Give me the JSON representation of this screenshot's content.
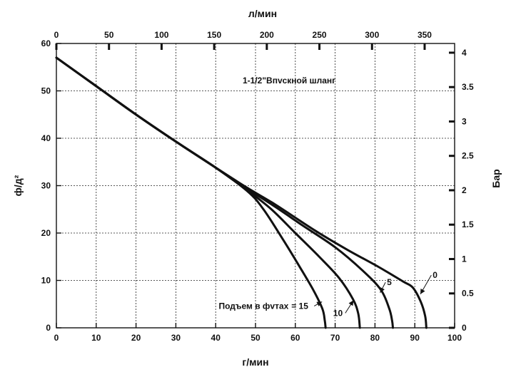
{
  "chart_data": {
    "type": "line",
    "xlabel": "г/мин",
    "ylabel": "ф/д²",
    "top_xlabel": "л/мин",
    "right_ylabel": "Бар",
    "xlim": [
      0,
      100
    ],
    "ylim": [
      0,
      60
    ],
    "x_ticks": [
      0,
      10,
      20,
      30,
      40,
      50,
      60,
      70,
      80,
      90,
      100
    ],
    "y_ticks": [
      0,
      10,
      20,
      30,
      40,
      50,
      60
    ],
    "top_x_ticks": [
      0,
      50,
      100,
      150,
      200,
      250,
      300,
      350
    ],
    "top_x_ticks_per_gpm": 3.785,
    "right_y_ticks": [
      "0",
      "0.5",
      "1",
      "1.5",
      "2",
      "2.5",
      "3",
      "3.5",
      "4"
    ],
    "right_y_ticks_per_psi": 0.0689,
    "grid": true,
    "annotation_title": "1-1/2\"Bпvскной шланг",
    "lift_label": "Подъем в фvтах",
    "series": [
      {
        "name": "15",
        "points": [
          [
            0,
            57
          ],
          [
            10,
            51
          ],
          [
            20,
            45
          ],
          [
            30,
            39.3
          ],
          [
            40,
            33.8
          ],
          [
            48,
            28.8
          ],
          [
            52,
            25
          ],
          [
            57,
            18.5
          ],
          [
            61,
            13
          ],
          [
            64.5,
            8
          ],
          [
            66.8,
            4
          ],
          [
            67.4,
            1.5
          ],
          [
            67.6,
            0
          ]
        ]
      },
      {
        "name": "10",
        "points": [
          [
            0,
            57
          ],
          [
            10,
            51
          ],
          [
            20,
            45
          ],
          [
            30,
            39.3
          ],
          [
            40,
            33.8
          ],
          [
            48,
            29
          ],
          [
            54,
            25
          ],
          [
            60,
            20
          ],
          [
            66,
            15
          ],
          [
            71,
            10.5
          ],
          [
            74.5,
            6
          ],
          [
            75.8,
            3
          ],
          [
            76.2,
            0
          ]
        ]
      },
      {
        "name": "5",
        "points": [
          [
            0,
            57
          ],
          [
            10,
            51
          ],
          [
            20,
            45
          ],
          [
            30,
            39.3
          ],
          [
            40,
            33.8
          ],
          [
            48,
            29.3
          ],
          [
            55,
            25.5
          ],
          [
            62,
            21.5
          ],
          [
            70,
            17
          ],
          [
            77,
            12
          ],
          [
            81.5,
            8
          ],
          [
            83.6,
            4
          ],
          [
            84.3,
            1.5
          ],
          [
            84.5,
            0
          ]
        ]
      },
      {
        "name": "0",
        "points": [
          [
            0,
            57
          ],
          [
            10,
            51
          ],
          [
            20,
            45
          ],
          [
            30,
            39.3
          ],
          [
            40,
            33.8
          ],
          [
            48,
            29.5
          ],
          [
            55,
            26
          ],
          [
            65,
            20.5
          ],
          [
            73,
            16.5
          ],
          [
            81,
            12.8
          ],
          [
            87,
            9.8
          ],
          [
            89.5,
            8.5
          ],
          [
            91.5,
            5.5
          ],
          [
            92.6,
            2.5
          ],
          [
            92.9,
            0
          ]
        ]
      }
    ],
    "curve_labels": [
      {
        "text": "= 15",
        "series": "15",
        "at": [
          59,
          4
        ],
        "arrow_to": [
          66.7,
          5.5
        ]
      },
      {
        "text": "10",
        "series": "10",
        "at": [
          69.5,
          2.5
        ],
        "arrow_to": [
          74.6,
          5.8
        ]
      },
      {
        "text": "5",
        "series": "5",
        "at": [
          83,
          9
        ],
        "arrow_to": [
          81.3,
          7.4
        ]
      },
      {
        "text": "0",
        "series": "0",
        "at": [
          94.5,
          10.5
        ],
        "arrow_to": [
          91.4,
          7.1
        ]
      }
    ]
  }
}
